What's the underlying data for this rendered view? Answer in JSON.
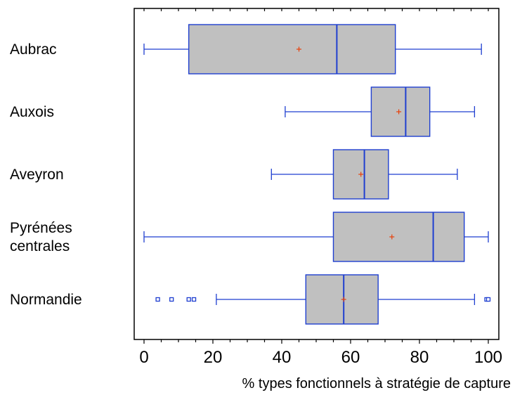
{
  "chart_data": {
    "type": "boxplot",
    "orientation": "horizontal",
    "title": "",
    "xlabel": "% types fonctionnels à stratégie de capture",
    "ylabel": "",
    "xlim": [
      -3,
      103
    ],
    "xticks": [
      0,
      20,
      40,
      60,
      80,
      100
    ],
    "grid": false,
    "legend": "none",
    "colors": {
      "box_fill": "#c0c0c0",
      "box_stroke": "#1f3fd0",
      "mean_marker": "#e8400a"
    },
    "categories": [
      {
        "label_lines": [
          "Aubrac"
        ],
        "whisker_low": 0,
        "q1": 13,
        "median": 56,
        "q3": 73,
        "whisker_high": 98,
        "mean": 45,
        "outliers": []
      },
      {
        "label_lines": [
          "Auxois"
        ],
        "whisker_low": 41,
        "q1": 66,
        "median": 76,
        "q3": 83,
        "whisker_high": 96,
        "mean": 74,
        "outliers": []
      },
      {
        "label_lines": [
          "Aveyron"
        ],
        "whisker_low": 37,
        "q1": 55,
        "median": 64,
        "q3": 71,
        "whisker_high": 91,
        "mean": 63,
        "outliers": []
      },
      {
        "label_lines": [
          "Pyrénées",
          "centrales"
        ],
        "whisker_low": 0,
        "q1": 55,
        "median": 84,
        "q3": 93,
        "whisker_high": 100,
        "mean": 72,
        "outliers": []
      },
      {
        "label_lines": [
          "Normandie"
        ],
        "whisker_low": 21,
        "q1": 47,
        "median": 58,
        "q3": 68,
        "whisker_high": 96,
        "mean": 58,
        "outliers": [
          4,
          8,
          13,
          14.5,
          99.5,
          100
        ]
      }
    ]
  }
}
